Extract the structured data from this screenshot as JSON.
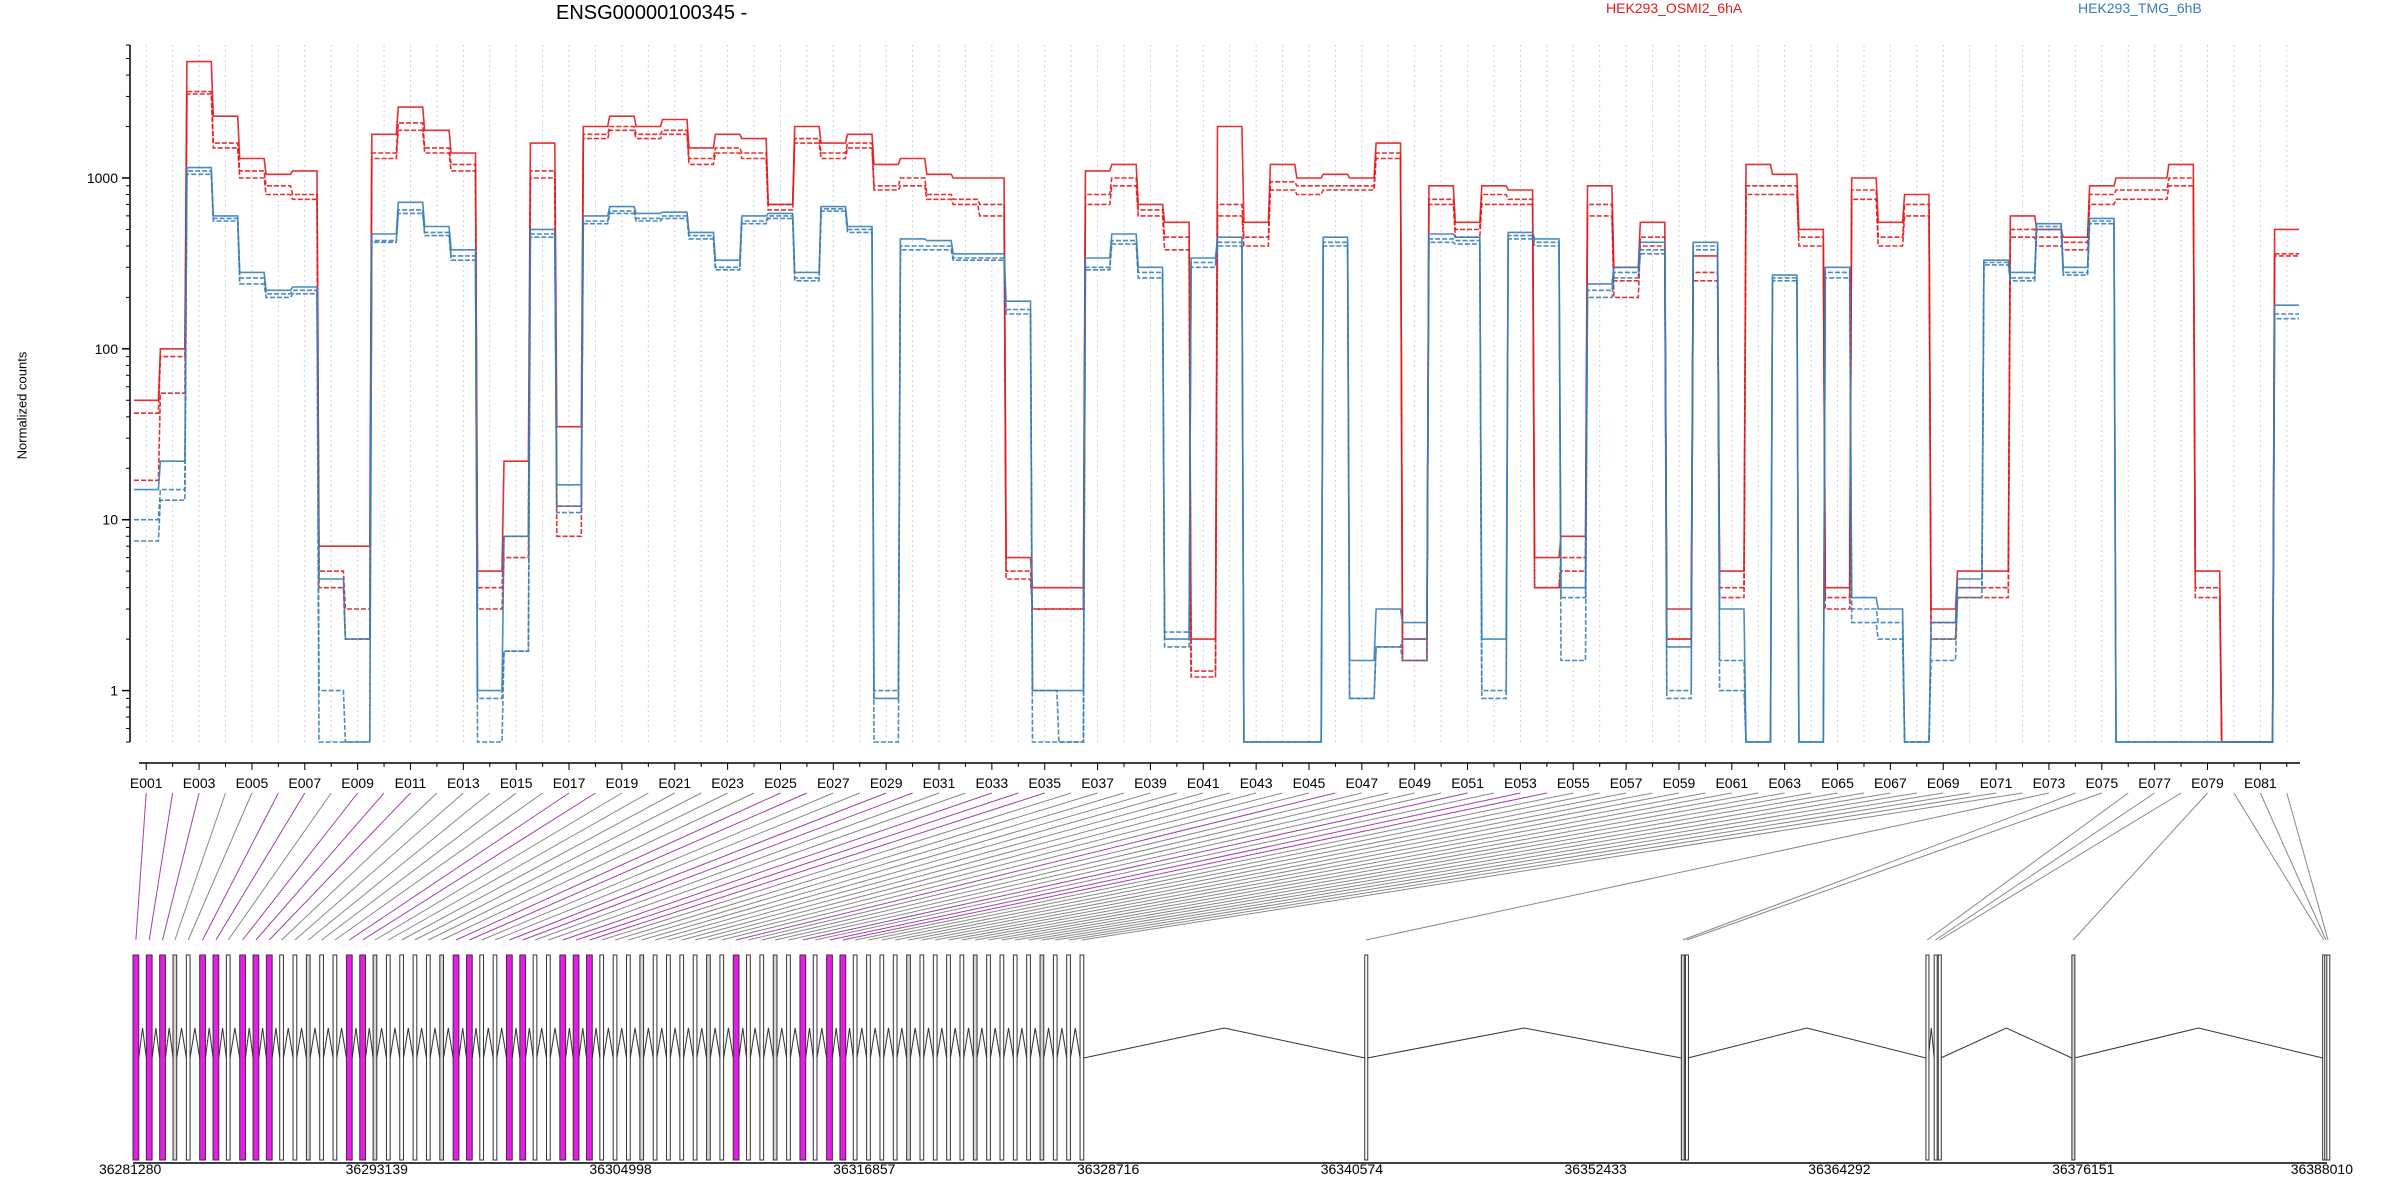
{
  "chart_data": {
    "type": "line",
    "title": "ENSG00000100345 -",
    "ylabel": "Normalized counts",
    "y_scale": "log10",
    "ylim": [
      0.5,
      6000
    ],
    "y_ticks": [
      1,
      10,
      100,
      1000
    ],
    "y_tick_labels": [
      "1",
      "10",
      "100",
      "1000"
    ],
    "legend": [
      {
        "name": "HEK293_OSMI2_6hA",
        "color": "#e41a1c"
      },
      {
        "name": "HEK293_TMG_6hB",
        "color": "#377eb8"
      }
    ],
    "legend_position": "top",
    "grid": "vertical dotted per exon",
    "exon_labels": [
      "E001",
      "E003",
      "E005",
      "E007",
      "E009",
      "E011",
      "E013",
      "E015",
      "E017",
      "E019",
      "E021",
      "E023",
      "E025",
      "E027",
      "E029",
      "E031",
      "E033",
      "E035",
      "E037",
      "E039",
      "E041",
      "E043",
      "E045",
      "E047",
      "E049",
      "E051",
      "E053",
      "E055",
      "E057",
      "E059",
      "E061",
      "E063",
      "E065",
      "E067",
      "E069",
      "E071",
      "E073",
      "E075",
      "E077",
      "E079",
      "E081"
    ],
    "exon_count": 82,
    "series": [
      {
        "name": "HEK293_OSMI2_6hA",
        "color": "#e41a1c",
        "values": [
          50,
          100,
          4800,
          2300,
          1300,
          1050,
          1100,
          7,
          7,
          1800,
          2600,
          1900,
          1400,
          5,
          22,
          1600,
          35,
          2000,
          2300,
          2000,
          2200,
          1500,
          1800,
          1700,
          700,
          2000,
          1600,
          1800,
          1200,
          1300,
          1050,
          1000,
          1000,
          6,
          4,
          4,
          1100,
          1200,
          700,
          550,
          2,
          2000,
          550,
          1200,
          1000,
          1050,
          1000,
          1600,
          2,
          900,
          550,
          900,
          850,
          6,
          8,
          900,
          300,
          550,
          3,
          350,
          5,
          1200,
          1050,
          500,
          4,
          1000,
          550,
          800,
          3,
          5,
          5,
          600,
          500,
          450,
          900,
          1000,
          1000,
          1200,
          5,
          0.5,
          0.5,
          500
        ]
      },
      {
        "name": "HEK293_OSMI2_6hA rep2",
        "color": "#e41a1c",
        "values": [
          42,
          90,
          3200,
          1600,
          1100,
          900,
          800,
          4,
          2,
          1400,
          2100,
          1500,
          1200,
          3,
          6,
          1100,
          12,
          1800,
          2000,
          1800,
          1900,
          1300,
          1500,
          1400,
          700,
          1700,
          1400,
          1600,
          900,
          1000,
          800,
          750,
          700,
          5,
          3,
          3,
          800,
          1000,
          650,
          450,
          1.3,
          700,
          450,
          950,
          900,
          900,
          900,
          1400,
          1.5,
          750,
          500,
          800,
          750,
          4,
          6,
          700,
          250,
          450,
          2,
          280,
          4,
          900,
          900,
          450,
          3.5,
          850,
          450,
          700,
          2.5,
          4,
          4,
          500,
          450,
          420,
          800,
          850,
          850,
          1000,
          4,
          0.5,
          0.5,
          360
        ]
      },
      {
        "name": "HEK293_OSMI2_6hA rep3",
        "color": "#e41a1c",
        "values": [
          17,
          55,
          3100,
          1500,
          1000,
          800,
          750,
          5,
          3,
          1300,
          1900,
          1400,
          1100,
          4,
          8,
          1000,
          8,
          1700,
          1900,
          1700,
          1800,
          1200,
          1400,
          1300,
          650,
          1600,
          1300,
          1500,
          850,
          900,
          750,
          700,
          600,
          4.5,
          3,
          3,
          700,
          900,
          600,
          380,
          1.2,
          600,
          400,
          850,
          800,
          850,
          850,
          1300,
          1.5,
          700,
          450,
          700,
          700,
          4,
          5,
          600,
          200,
          400,
          2,
          250,
          3.5,
          800,
          800,
          400,
          3,
          750,
          400,
          600,
          2,
          3.5,
          3.5,
          450,
          400,
          380,
          700,
          750,
          750,
          900,
          3.5,
          0.5,
          0.5,
          350
        ]
      },
      {
        "name": "HEK293_TMG_6hB",
        "color": "#377eb8",
        "values": [
          15,
          22,
          1150,
          600,
          280,
          220,
          230,
          4.5,
          2,
          470,
          720,
          520,
          380,
          1,
          8,
          500,
          16,
          600,
          680,
          620,
          630,
          480,
          330,
          600,
          620,
          280,
          680,
          520,
          0.9,
          440,
          430,
          360,
          360,
          190,
          1,
          1,
          340,
          470,
          300,
          2,
          340,
          450,
          0.5,
          0.5,
          0.5,
          450,
          1.5,
          3,
          2.5,
          470,
          450,
          2,
          480,
          440,
          4,
          240,
          300,
          420,
          1.8,
          420,
          3,
          0.5,
          270,
          0.5,
          300,
          3.5,
          3,
          0.5,
          2.5,
          4.5,
          330,
          280,
          540,
          300,
          580,
          0.5,
          0.5,
          0.5,
          0.5,
          0.5,
          0.5,
          180
        ]
      },
      {
        "name": "HEK293_TMG_6hB rep2",
        "color": "#377eb8",
        "values": [
          10,
          15,
          1100,
          580,
          260,
          210,
          220,
          1,
          0.5,
          430,
          650,
          480,
          350,
          0.9,
          1.7,
          470,
          12,
          560,
          640,
          580,
          600,
          460,
          300,
          560,
          600,
          260,
          660,
          500,
          1,
          400,
          400,
          340,
          340,
          170,
          1,
          0.5,
          300,
          430,
          280,
          2.2,
          320,
          420,
          0.5,
          0.5,
          0.5,
          420,
          0.9,
          1.8,
          2,
          440,
          430,
          1,
          460,
          420,
          3.5,
          220,
          280,
          380,
          1,
          400,
          1.5,
          0.5,
          260,
          0.5,
          280,
          3,
          2.5,
          0.5,
          2,
          4,
          320,
          260,
          520,
          280,
          560,
          0.5,
          0.5,
          0.5,
          0.5,
          0.5,
          0.5,
          160
        ]
      },
      {
        "name": "HEK293_TMG_6hB rep3",
        "color": "#377eb8",
        "values": [
          7.5,
          13,
          1050,
          560,
          240,
          200,
          210,
          0.5,
          0.5,
          420,
          620,
          460,
          330,
          0.5,
          1.7,
          450,
          11,
          540,
          620,
          560,
          580,
          440,
          290,
          540,
          580,
          250,
          640,
          480,
          0.5,
          380,
          380,
          330,
          330,
          160,
          0.5,
          0.5,
          290,
          410,
          260,
          1.8,
          300,
          400,
          0.5,
          0.5,
          0.5,
          400,
          0.9,
          1.8,
          1.5,
          420,
          410,
          0.9,
          440,
          400,
          1.5,
          200,
          260,
          360,
          0.9,
          380,
          1,
          0.5,
          250,
          0.5,
          260,
          2.5,
          2,
          0.5,
          1.5,
          3.5,
          310,
          250,
          500,
          270,
          540,
          0.5,
          0.5,
          0.5,
          0.5,
          0.5,
          0.5,
          150
        ]
      }
    ],
    "genomic_axis": {
      "tick_labels": [
        "36281280",
        "36293139",
        "36304998",
        "36316857",
        "36328716",
        "36340574",
        "36352433",
        "36364292",
        "36376151",
        "36388010"
      ],
      "range": [
        36281280,
        36388010
      ]
    },
    "colors": {
      "differential_exon": "#e81ce8",
      "normal_exon": "#d3d3d3",
      "connector_differential": "#a040a8",
      "connector_normal": "#888888"
    }
  }
}
